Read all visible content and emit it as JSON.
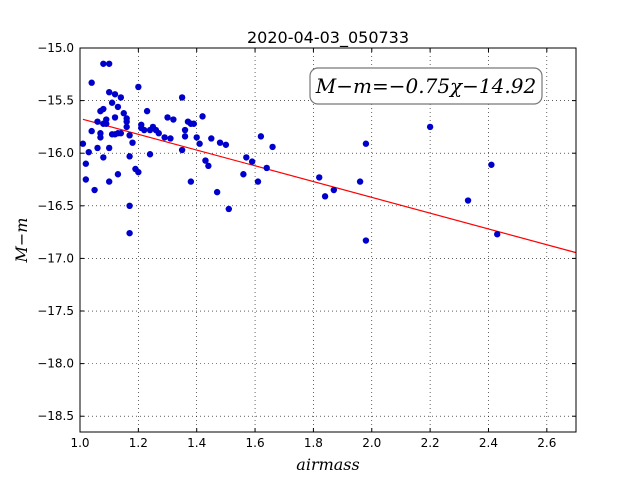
{
  "chart_data": {
    "type": "scatter",
    "title": "2020-04-03_050733",
    "xlabel": "airmass",
    "ylabel": "M−m",
    "xlim": [
      1.0,
      2.7
    ],
    "ylim": [
      -15.0,
      -18.65
    ],
    "y_inverted": true,
    "grid": true,
    "x_ticks": [
      1.0,
      1.2,
      1.4,
      1.6,
      1.8,
      2.0,
      2.2,
      2.4,
      2.6
    ],
    "x_tick_labels": [
      "1.0",
      "1.2",
      "1.4",
      "1.6",
      "1.8",
      "2.0",
      "2.2",
      "2.4",
      "2.6"
    ],
    "y_ticks": [
      -15.0,
      -15.5,
      -16.0,
      -16.5,
      -17.0,
      -17.5,
      -18.0,
      -18.5
    ],
    "y_tick_labels": [
      "−15.0",
      "−15.5",
      "−16.0",
      "−16.5",
      "−17.0",
      "−17.5",
      "−18.0",
      "−18.5"
    ],
    "annotation": "M−m=−0.75χ−14.92",
    "fit": {
      "slope": -0.75,
      "intercept": -14.92,
      "x_range": [
        1.01,
        2.7
      ],
      "color": "#ff0000"
    },
    "point_color": "#0000cc",
    "series": [
      {
        "x": [
          1.01,
          1.02,
          1.02,
          1.03,
          1.04,
          1.04,
          1.05,
          1.06,
          1.06,
          1.07,
          1.07,
          1.07,
          1.08,
          1.08,
          1.08,
          1.08,
          1.09,
          1.09,
          1.1,
          1.1,
          1.1,
          1.1,
          1.11,
          1.11,
          1.12,
          1.12,
          1.12,
          1.13,
          1.13,
          1.13,
          1.14,
          1.14,
          1.15,
          1.16,
          1.16,
          1.16,
          1.17,
          1.17,
          1.17,
          1.17,
          1.18,
          1.19,
          1.2,
          1.2,
          1.21,
          1.21,
          1.22,
          1.23,
          1.24,
          1.24,
          1.25,
          1.26,
          1.27,
          1.29,
          1.3,
          1.31,
          1.32,
          1.35,
          1.35,
          1.36,
          1.36,
          1.37,
          1.38,
          1.38,
          1.39,
          1.4,
          1.41,
          1.42,
          1.43,
          1.44,
          1.45,
          1.47,
          1.48,
          1.5,
          1.51,
          1.56,
          1.57,
          1.59,
          1.61,
          1.62,
          1.64,
          1.66,
          1.82,
          1.84,
          1.87,
          1.96,
          1.98,
          1.98,
          2.2,
          2.33,
          2.41,
          2.43
        ],
        "y": [
          -15.91,
          -16.1,
          -16.25,
          -15.99,
          -15.33,
          -15.79,
          -16.35,
          -15.95,
          -15.7,
          -15.85,
          -15.81,
          -15.6,
          -15.15,
          -15.72,
          -16.04,
          -15.58,
          -15.72,
          -15.68,
          -15.15,
          -16.27,
          -15.42,
          -15.95,
          -15.52,
          -15.82,
          -15.66,
          -15.44,
          -15.82,
          -15.81,
          -16.2,
          -15.56,
          -15.47,
          -15.81,
          -15.62,
          -15.7,
          -15.67,
          -15.75,
          -16.5,
          -16.76,
          -16.03,
          -15.83,
          -15.9,
          -16.15,
          -15.37,
          -16.18,
          -15.76,
          -15.73,
          -15.78,
          -15.6,
          -16.01,
          -15.78,
          -15.75,
          -15.78,
          -15.81,
          -15.85,
          -15.66,
          -15.86,
          -15.68,
          -15.47,
          -15.97,
          -15.78,
          -15.84,
          -15.7,
          -16.27,
          -15.72,
          -15.72,
          -15.85,
          -15.91,
          -15.65,
          -16.07,
          -16.12,
          -15.86,
          -16.37,
          -15.9,
          -15.92,
          -16.53,
          -16.2,
          -16.04,
          -16.08,
          -16.27,
          -15.84,
          -16.14,
          -15.94,
          -16.23,
          -16.41,
          -16.35,
          -16.27,
          -15.91,
          -16.83,
          -15.75,
          -16.45,
          -16.11,
          -16.77
        ]
      }
    ]
  }
}
